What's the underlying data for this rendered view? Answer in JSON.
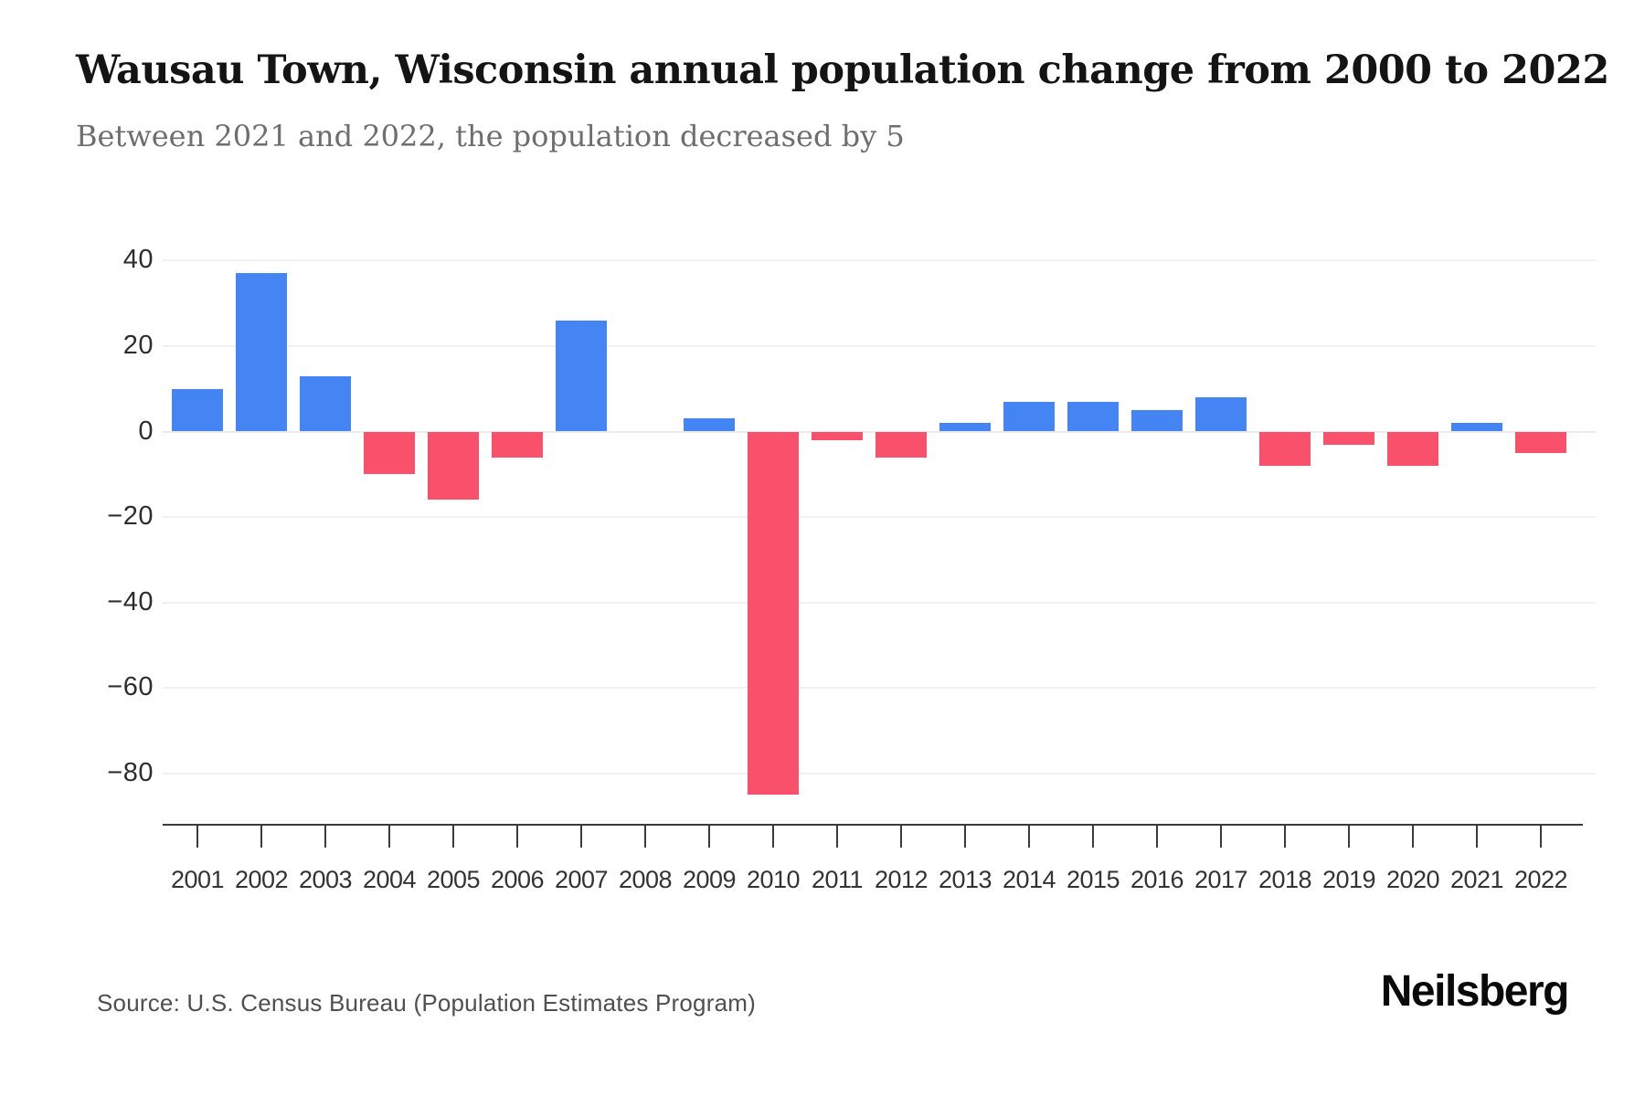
{
  "chart_data": {
    "type": "bar",
    "title": "Wausau Town, Wisconsin annual population change from 2000 to 2022",
    "subtitle": "Between 2021 and 2022, the population decreased by 5",
    "categories": [
      "2001",
      "2002",
      "2003",
      "2004",
      "2005",
      "2006",
      "2007",
      "2008",
      "2009",
      "2010",
      "2011",
      "2012",
      "2013",
      "2014",
      "2015",
      "2016",
      "2017",
      "2018",
      "2019",
      "2020",
      "2021",
      "2022"
    ],
    "values": [
      10,
      37,
      13,
      -10,
      -16,
      -6,
      26,
      0,
      3,
      -85,
      -2,
      -6,
      2,
      7,
      7,
      5,
      8,
      -8,
      -3,
      -8,
      2,
      -5
    ],
    "yticks": [
      40,
      20,
      0,
      -20,
      -40,
      -60,
      -80
    ],
    "ylim": [
      -88,
      44
    ],
    "xlabel": "",
    "ylabel": "",
    "grid": true,
    "legend": "none",
    "positive_color": "#4484F3",
    "negative_color": "#F9506B"
  },
  "footer": {
    "source": "Source: U.S. Census Bureau (Population Estimates Program)",
    "brand": "Neilsberg"
  }
}
